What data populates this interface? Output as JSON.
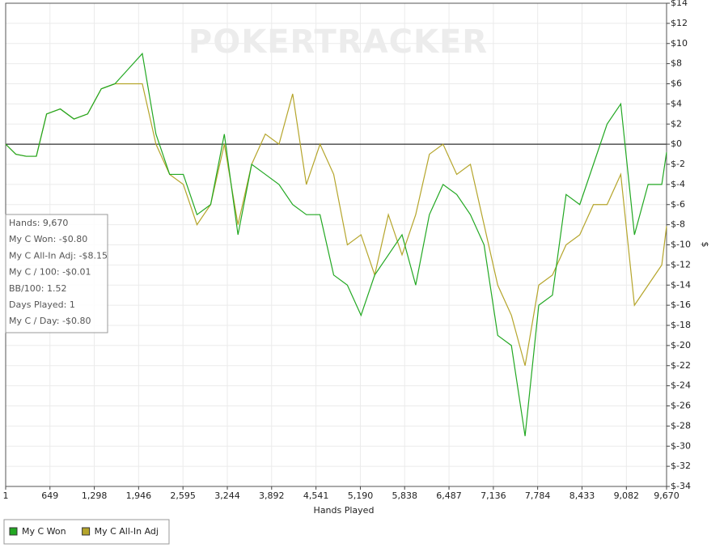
{
  "chart_data": {
    "type": "line",
    "watermark": "POKERTRACKER",
    "xlabel": "Hands Played",
    "ylabel": "$",
    "x": [
      1,
      150,
      300,
      450,
      600,
      800,
      1000,
      1200,
      1400,
      1600,
      1800,
      2000,
      2200,
      2400,
      2600,
      2800,
      3000,
      3200,
      3400,
      3600,
      3800,
      4000,
      4200,
      4400,
      4600,
      4800,
      5000,
      5200,
      5400,
      5600,
      5800,
      6000,
      6200,
      6400,
      6600,
      6800,
      7000,
      7200,
      7400,
      7600,
      7800,
      8000,
      8200,
      8400,
      8600,
      8800,
      9000,
      9200,
      9400,
      9600,
      9670
    ],
    "series": [
      {
        "name": "My C Won",
        "color": "#22a822",
        "values": [
          0,
          -1,
          -1.2,
          -1.2,
          3,
          3.5,
          2.5,
          3,
          5.5,
          6,
          7.5,
          9,
          1,
          -3,
          -3,
          -7,
          -6,
          1,
          -9,
          -2,
          -3,
          -4,
          -6,
          -7,
          -7,
          -13,
          -14,
          -17,
          -13,
          -11,
          -9,
          -14,
          -7,
          -4,
          -5,
          -7,
          -10,
          -19,
          -20,
          -29,
          -16,
          -15,
          -5,
          -6,
          -2,
          2,
          4,
          -9,
          -4,
          -4,
          -0.8
        ]
      },
      {
        "name": "My C All-In Adj",
        "color": "#b5a52b",
        "values": [
          0,
          -1,
          -1.2,
          -1.2,
          3,
          3.5,
          2.5,
          3,
          5.5,
          6,
          6,
          6,
          0,
          -3,
          -4,
          -8,
          -6,
          0,
          -8,
          -2,
          1,
          0,
          5,
          -4,
          0,
          -3,
          -10,
          -9,
          -13,
          -7,
          -11,
          -7,
          -1,
          0,
          -3,
          -2,
          -8,
          -14,
          -17,
          -22,
          -14,
          -13,
          -10,
          -9,
          -6,
          -6,
          -3,
          -16,
          -14,
          -12,
          -8.15
        ]
      }
    ],
    "xlim": [
      1,
      9670
    ],
    "xticks": [
      1,
      649,
      {
        "value": 1298,
        "label": "1,298"
      },
      {
        "value": 1946,
        "label": "1,946"
      },
      {
        "value": 2595,
        "label": "2,595"
      },
      {
        "value": 3244,
        "label": "3,244"
      },
      {
        "value": 3892,
        "label": "3,892"
      },
      {
        "value": 4541,
        "label": "4,541"
      },
      {
        "value": 5190,
        "label": "5,190"
      },
      {
        "value": 5838,
        "label": "5,838"
      },
      {
        "value": 6487,
        "label": "6,487"
      },
      {
        "value": 7136,
        "label": "7,136"
      },
      {
        "value": 7784,
        "label": "7,784"
      },
      {
        "value": 8433,
        "label": "8,433"
      },
      {
        "value": 9082,
        "label": "9,082"
      },
      {
        "value": 9670,
        "label": "9,670"
      }
    ],
    "ylim": [
      -34,
      14
    ],
    "yticks": [
      {
        "value": 14,
        "label": "$14"
      },
      {
        "value": 12,
        "label": "$12"
      },
      {
        "value": 10,
        "label": "$10"
      },
      {
        "value": 8,
        "label": "$8"
      },
      {
        "value": 6,
        "label": "$6"
      },
      {
        "value": 4,
        "label": "$4"
      },
      {
        "value": 2,
        "label": "$2"
      },
      {
        "value": 0,
        "label": "$0"
      },
      {
        "value": -2,
        "label": "$-2"
      },
      {
        "value": -4,
        "label": "$-4"
      },
      {
        "value": -6,
        "label": "$-6"
      },
      {
        "value": -8,
        "label": "$-8"
      },
      {
        "value": -10,
        "label": "$-10"
      },
      {
        "value": -12,
        "label": "$-12"
      },
      {
        "value": -14,
        "label": "$-14"
      },
      {
        "value": -16,
        "label": "$-16"
      },
      {
        "value": -18,
        "label": "$-18"
      },
      {
        "value": -20,
        "label": "$-20"
      },
      {
        "value": -22,
        "label": "$-22"
      },
      {
        "value": -24,
        "label": "$-24"
      },
      {
        "value": -26,
        "label": "$-26"
      },
      {
        "value": -28,
        "label": "$-28"
      },
      {
        "value": -30,
        "label": "$-30"
      },
      {
        "value": -32,
        "label": "$-32"
      },
      {
        "value": -34,
        "label": "$-34"
      }
    ],
    "grid": true,
    "info_box": [
      "Hands: 9,670",
      "My C Won: -$0.80",
      "My C All-In Adj: -$8.15",
      "My C / 100: -$0.01",
      "BB/100: 1.52",
      "Days Played: 1",
      "My C / Day: -$0.80"
    ]
  }
}
